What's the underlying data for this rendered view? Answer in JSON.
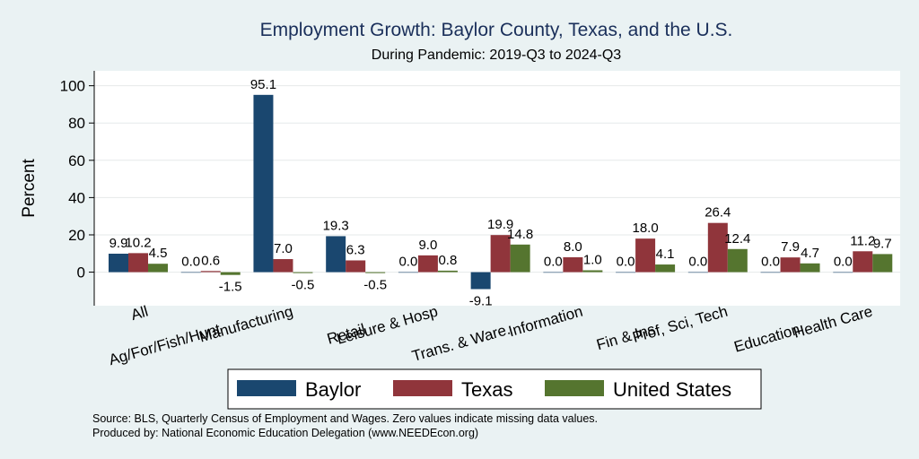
{
  "chart_data": {
    "type": "bar",
    "title": "Employment Growth: Baylor County, Texas, and the U.S.",
    "subtitle": "During Pandemic: 2019-Q3 to 2024-Q3",
    "ylabel": "Percent",
    "xlabel": "",
    "ylim": [
      -18,
      108
    ],
    "yticks": [
      0,
      20,
      40,
      60,
      80,
      100
    ],
    "grid": true,
    "legend_position": "bottom",
    "categories": [
      "All",
      "Ag/For/Fish/Hunt",
      "Manufacturing",
      "Retail",
      "Leisure & Hosp",
      "Trans. & Ware.",
      "Information",
      "Fin & Ins",
      "Prof, Sci, Tech",
      "Education",
      "Health Care"
    ],
    "series": [
      {
        "name": "Baylor",
        "color": "#1a476f",
        "values": [
          9.9,
          0.0,
          95.1,
          19.3,
          0.0,
          -9.1,
          0.0,
          0.0,
          0.0,
          0.0,
          0.0
        ]
      },
      {
        "name": "Texas",
        "color": "#90353b",
        "values": [
          10.2,
          0.6,
          7.0,
          6.3,
          9.0,
          19.9,
          8.0,
          18.0,
          26.4,
          7.9,
          11.2
        ]
      },
      {
        "name": "United States",
        "color": "#55752f",
        "values": [
          4.5,
          -1.5,
          -0.5,
          -0.5,
          0.8,
          14.8,
          1.0,
          4.1,
          12.4,
          4.7,
          9.7
        ]
      }
    ],
    "value_labels": [
      [
        "9.9",
        "0.0",
        "95.1",
        "19.3",
        "0.0",
        "-9.1",
        "0.0",
        "0.0",
        "0.0",
        "0.0",
        "0.0"
      ],
      [
        "10.2",
        "0.6",
        "7.0",
        "6.3",
        "9.0",
        "19.9",
        "8.0",
        "18.0",
        "26.4",
        "7.9",
        "11.2"
      ],
      [
        "4.5",
        "-1.5",
        "-0.5",
        "-0.5",
        "0.8",
        "14.8",
        "1.0",
        "4.1",
        "12.4",
        "4.7",
        "9.7"
      ]
    ],
    "notes": [
      "Source: BLS, Quarterly Census of Employment and Wages. Zero values indicate missing data values.",
      "Produced by: National Economic Education Delegation (www.NEEDEcon.org)"
    ]
  }
}
